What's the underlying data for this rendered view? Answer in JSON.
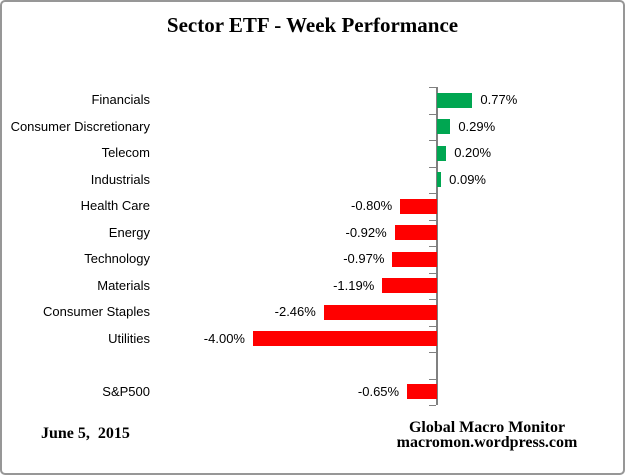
{
  "footer": {
    "date": "June 5,  2015",
    "credit_line1": "Global Macro Monitor",
    "credit_line2": "macromon.wordpress.com"
  },
  "chart_data": {
    "type": "bar",
    "orientation": "horizontal",
    "title": "Sector ETF - Week Performance",
    "unit": "percent",
    "categories": [
      "Financials",
      "Consumer Discretionary",
      "Telecom",
      "Industrials",
      "Health Care",
      "Energy",
      "Technology",
      "Materials",
      "Consumer Staples",
      "Utilities",
      "",
      "S&P500"
    ],
    "values": [
      0.77,
      0.29,
      0.2,
      0.09,
      -0.8,
      -0.92,
      -0.97,
      -1.19,
      -2.46,
      -4.0,
      null,
      -0.65
    ],
    "value_labels": [
      "0.77%",
      "0.29%",
      "0.20%",
      "0.09%",
      "-0.80%",
      "-0.92%",
      "-0.97%",
      "-1.19%",
      "-2.46%",
      "-4.00%",
      "",
      "-0.65%"
    ],
    "positive_color": "#00A651",
    "negative_color": "#FF0000",
    "axis_color": "#808080",
    "xlim": [
      -4.2,
      1.0
    ],
    "grid": false,
    "legend": false
  }
}
